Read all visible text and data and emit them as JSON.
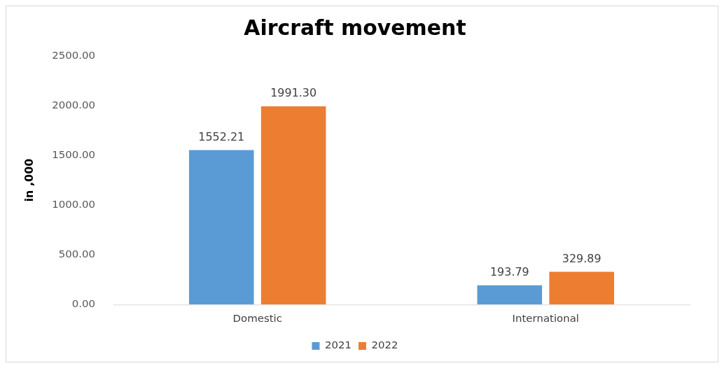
{
  "chart_data": {
    "type": "bar",
    "title": "Aircraft movement",
    "ylabel": "in ,000",
    "categories": [
      "Domestic",
      "International"
    ],
    "series": [
      {
        "name": "2021",
        "color": "#5b9bd5",
        "values": [
          1552.21,
          193.79
        ],
        "value_labels": [
          "1552.21",
          "193.79"
        ]
      },
      {
        "name": "2022",
        "color": "#ed7d31",
        "values": [
          1991.3,
          329.89
        ],
        "value_labels": [
          "1991.30",
          "329.89"
        ]
      }
    ],
    "ylim": [
      0,
      2500
    ],
    "yticks": [
      {
        "value": 0,
        "label": "0.00"
      },
      {
        "value": 500,
        "label": "500.00"
      },
      {
        "value": 1000,
        "label": "1000.00"
      },
      {
        "value": 1500,
        "label": "1500.00"
      },
      {
        "value": 2000,
        "label": "2000.00"
      },
      {
        "value": 2500,
        "label": "2500.00"
      }
    ],
    "grid": false,
    "legend": "bottom"
  }
}
